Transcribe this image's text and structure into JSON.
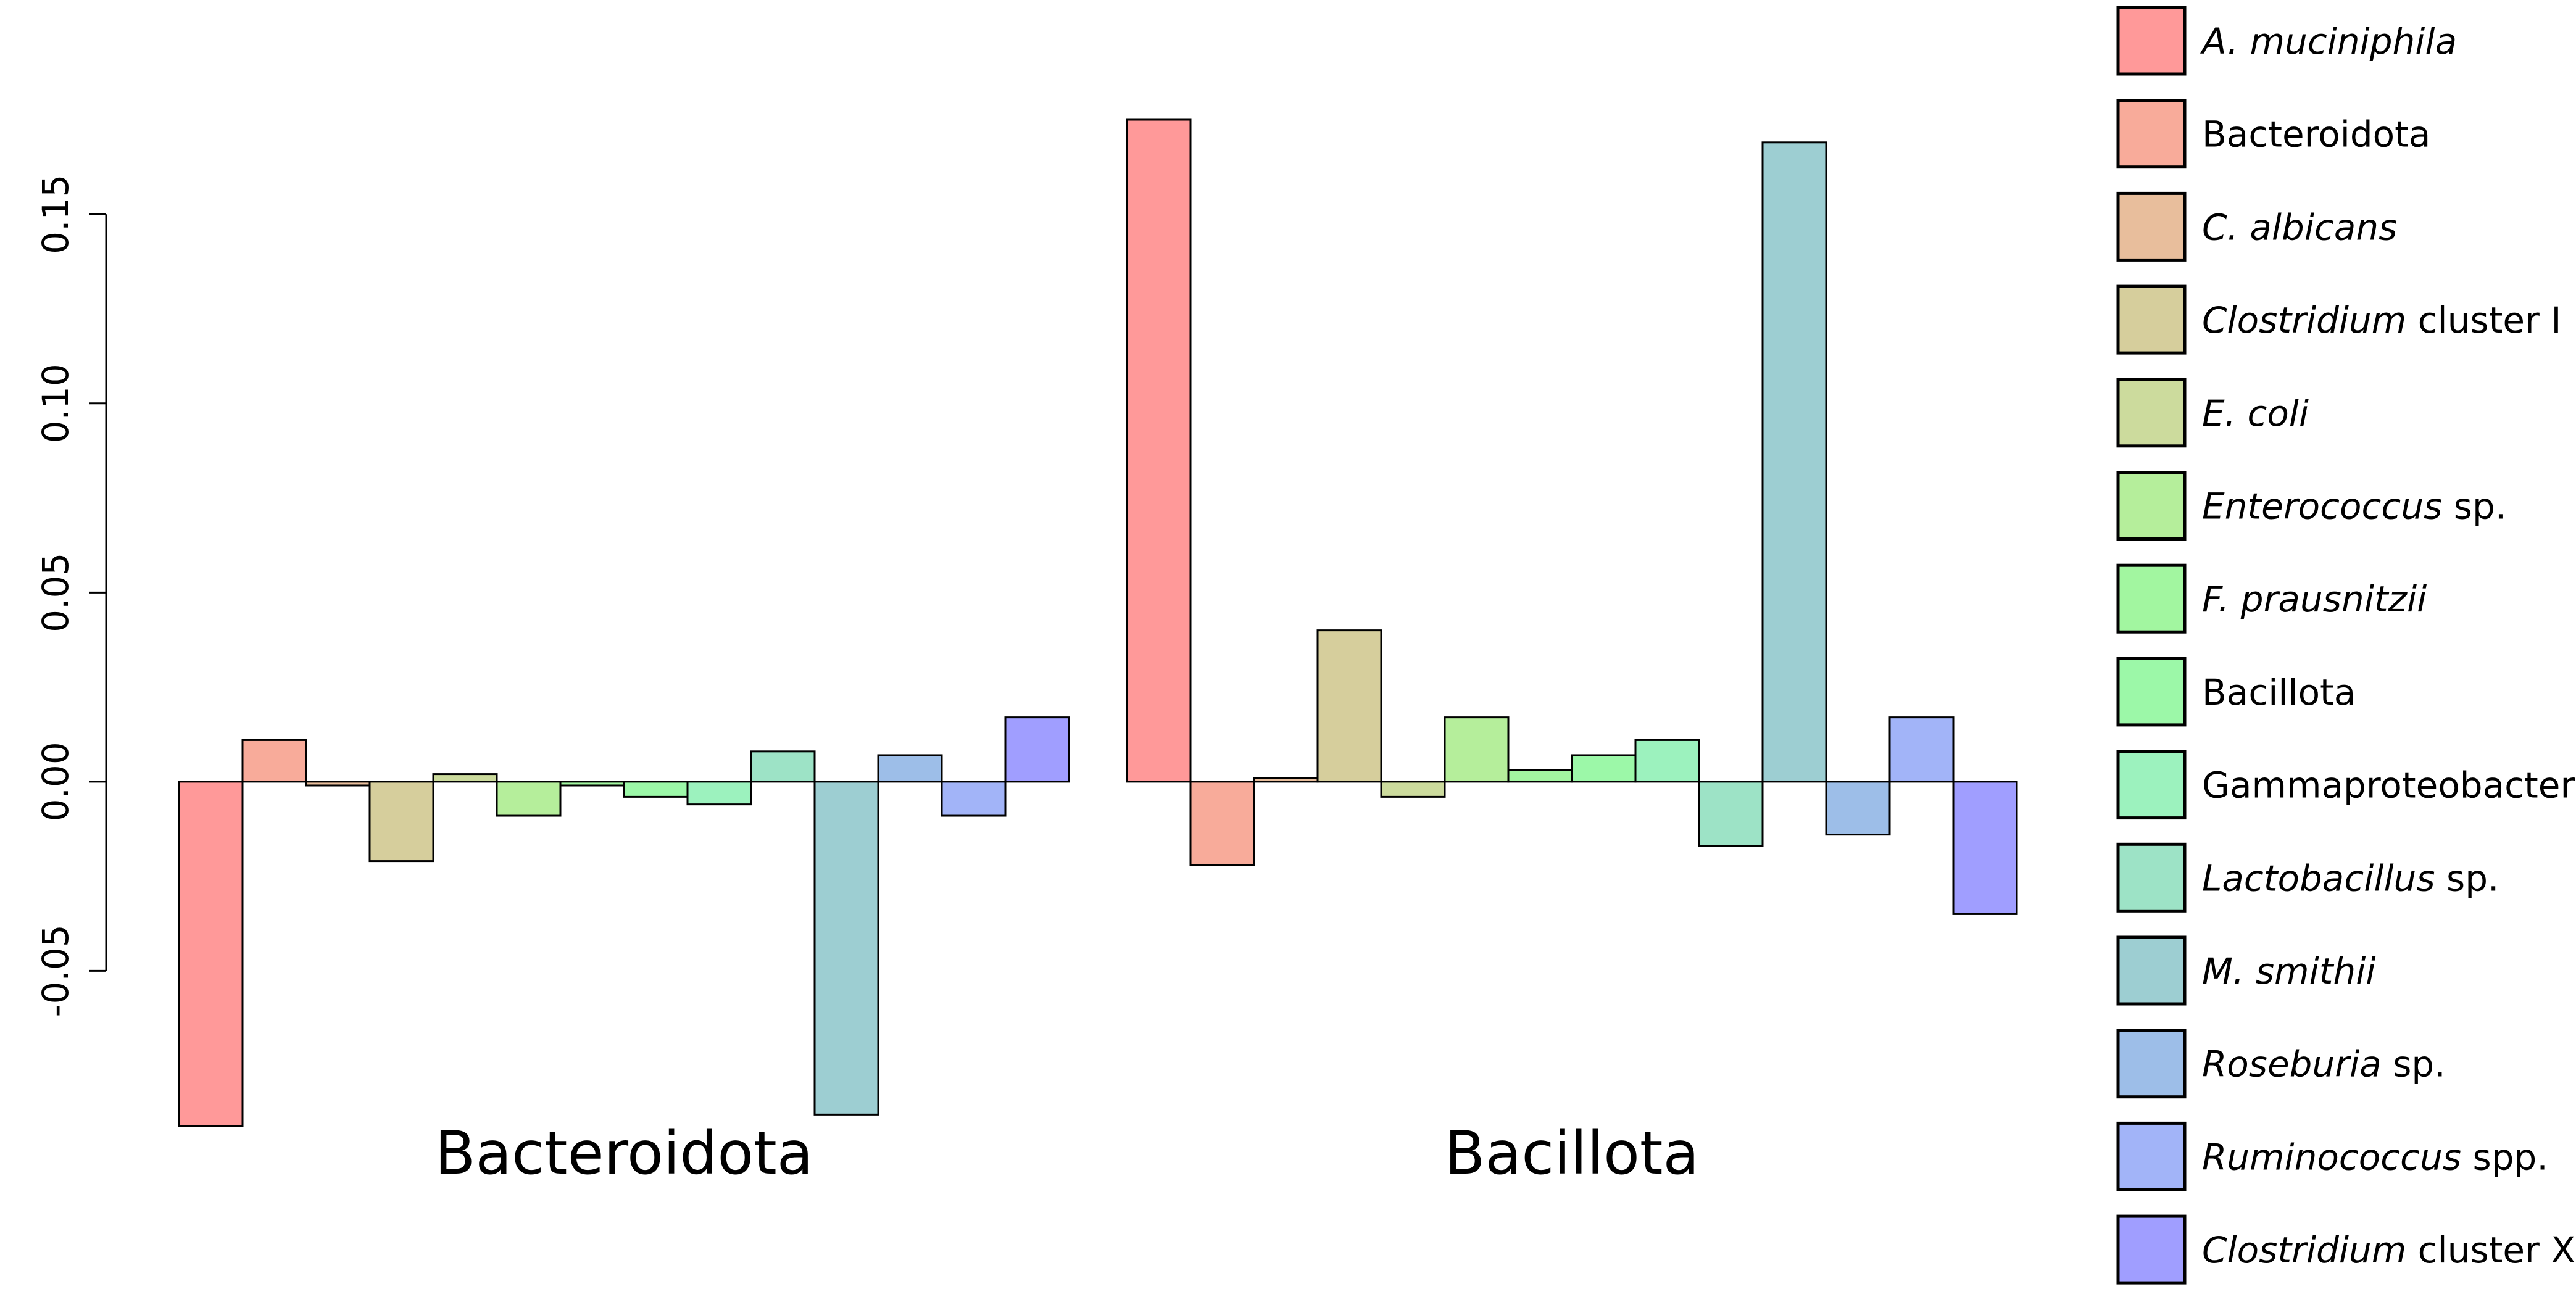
{
  "chart_data": {
    "type": "bar",
    "categories": [
      "Bacteroidota",
      "Bacillota"
    ],
    "ylim": [
      -0.07,
      0.175
    ],
    "yticks": [
      -0.05,
      0.0,
      0.05,
      0.1,
      0.15
    ],
    "ytick_labels": [
      "-0.05",
      "0.00",
      "0.05",
      "0.10",
      "0.15"
    ],
    "series": [
      {
        "name": "A. muciniphila",
        "name_parts": [
          {
            "text": "A. muciniphila",
            "italic": true
          }
        ],
        "color": "#FF9999",
        "values": [
          -0.091,
          0.175
        ]
      },
      {
        "name": "Bacteroidota",
        "name_parts": [
          {
            "text": "Bacteroidota",
            "italic": false
          }
        ],
        "color": "#F8AB9A",
        "values": [
          0.011,
          -0.022
        ]
      },
      {
        "name": "C. albicans",
        "name_parts": [
          {
            "text": "C. albicans",
            "italic": true
          }
        ],
        "color": "#E8BE9C",
        "values": [
          -0.001,
          0.001
        ]
      },
      {
        "name": "Clostridium cluster I",
        "name_parts": [
          {
            "text": "Clostridium",
            "italic": true
          },
          {
            "text": " cluster I",
            "italic": false
          }
        ],
        "color": "#D6CE9C",
        "values": [
          -0.021,
          0.04
        ]
      },
      {
        "name": "E. coli",
        "name_parts": [
          {
            "text": "E. coli",
            "italic": true
          }
        ],
        "color": "#CCDB9D",
        "values": [
          0.002,
          -0.004
        ]
      },
      {
        "name": "Enterococcus sp.",
        "name_parts": [
          {
            "text": "Enterococcus",
            "italic": true
          },
          {
            "text": " sp.",
            "italic": false
          }
        ],
        "color": "#B5EE9B",
        "values": [
          -0.009,
          0.017
        ]
      },
      {
        "name": "F. prausnitzii",
        "name_parts": [
          {
            "text": "F. prausnitzii",
            "italic": true
          }
        ],
        "color": "#A2F6A0",
        "values": [
          -0.001,
          0.003
        ]
      },
      {
        "name": "Bacillota",
        "name_parts": [
          {
            "text": "Bacillota",
            "italic": false
          }
        ],
        "color": "#9CF8A8",
        "values": [
          -0.004,
          0.007
        ]
      },
      {
        "name": "Gammaproteobacteria",
        "name_parts": [
          {
            "text": "Gammaproteobacteria",
            "italic": false
          }
        ],
        "color": "#9CF2BE",
        "values": [
          -0.006,
          0.011
        ]
      },
      {
        "name": "Lactobacillus sp.",
        "name_parts": [
          {
            "text": "Lactobacillus",
            "italic": true
          },
          {
            "text": " sp.",
            "italic": false
          }
        ],
        "color": "#9DE3C6",
        "values": [
          0.008,
          -0.017
        ]
      },
      {
        "name": "M. smithii",
        "name_parts": [
          {
            "text": "M. smithii",
            "italic": true
          }
        ],
        "color": "#9DCED2",
        "values": [
          -0.088,
          0.169
        ]
      },
      {
        "name": "Roseburia sp.",
        "name_parts": [
          {
            "text": "Roseburia",
            "italic": true
          },
          {
            "text": " sp.",
            "italic": false
          }
        ],
        "color": "#9DBEE8",
        "values": [
          0.007,
          -0.014
        ]
      },
      {
        "name": "Ruminococcus spp.",
        "name_parts": [
          {
            "text": "Ruminococcus",
            "italic": true
          },
          {
            "text": " spp.",
            "italic": false
          }
        ],
        "color": "#A2B4F8",
        "values": [
          -0.009,
          0.017
        ]
      },
      {
        "name": "Clostridium cluster XIV",
        "name_parts": [
          {
            "text": "Clostridium",
            "italic": true
          },
          {
            "text": " cluster XIV",
            "italic": false
          }
        ],
        "color": "#A09EFF",
        "values": [
          0.017,
          -0.035
        ]
      }
    ],
    "legend_position": "right",
    "grid": false
  }
}
